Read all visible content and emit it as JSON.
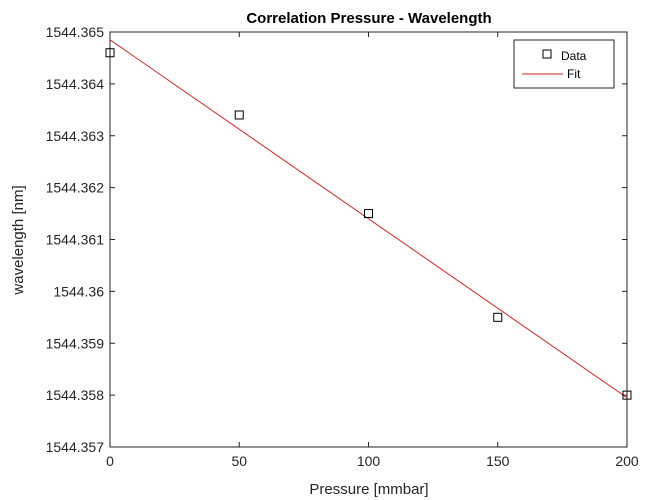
{
  "chart_data": {
    "type": "scatter",
    "title": "Correlation Pressure - Wavelength",
    "xlabel": "Pressure [mmbar]",
    "ylabel": "wavelength [nm]",
    "xlim": [
      0,
      200
    ],
    "ylim": [
      1544.357,
      1544.365
    ],
    "xticks": [
      0,
      50,
      100,
      150,
      200
    ],
    "xtick_labels": [
      "0",
      "50",
      "100",
      "150",
      "200"
    ],
    "yticks": [
      1544.357,
      1544.358,
      1544.359,
      1544.36,
      1544.361,
      1544.362,
      1544.363,
      1544.364,
      1544.365
    ],
    "ytick_labels": [
      "1544.357",
      "1544.358",
      "1544.359",
      "1544.36",
      "1544.361",
      "1544.362",
      "1544.363",
      "1544.364",
      "1544.365"
    ],
    "grid": false,
    "legend_position": "top-right",
    "series": [
      {
        "name": "Data",
        "kind": "markers",
        "marker": "square",
        "color": "#000000",
        "x": [
          0,
          50,
          100,
          150,
          200
        ],
        "y": [
          1544.3646,
          1544.3634,
          1544.3615,
          1544.3595,
          1544.358
        ]
      },
      {
        "name": "Fit",
        "kind": "line",
        "color": "#d62728",
        "x": [
          0,
          200
        ],
        "y": [
          1544.36485,
          1544.35795
        ]
      }
    ]
  }
}
